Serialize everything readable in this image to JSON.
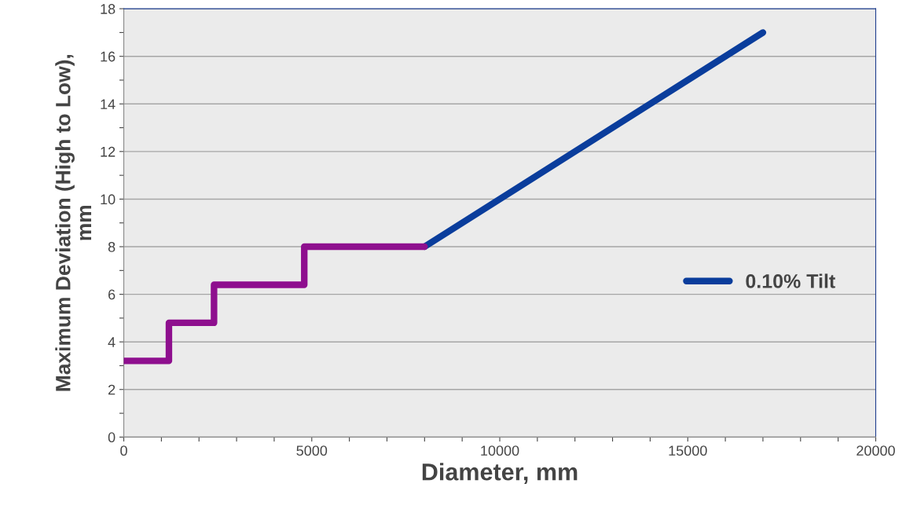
{
  "chart_data": {
    "type": "line",
    "xlabel": "Diameter, mm",
    "ylabel": "Maximum Deviation (High to Low),\nmm",
    "series": [
      {
        "name": "0.10% Tilt",
        "color": "#0a3d9c",
        "x": [
          8000,
          17000
        ],
        "values": [
          8,
          17
        ]
      },
      {
        "type": "step",
        "color": "#8e0f8e",
        "x": [
          0,
          1200,
          2400,
          4800,
          8000
        ],
        "values": [
          3.2,
          4.8,
          6.4,
          8,
          8
        ]
      }
    ],
    "xlim": [
      0,
      20000
    ],
    "ylim": [
      0,
      18
    ],
    "xticks": [
      0,
      {
        "value": 1000,
        "label": null
      },
      {
        "value": 2000,
        "label": null
      },
      {
        "value": 3000,
        "label": null
      },
      {
        "value": 4000,
        "label": null
      },
      5000,
      {
        "value": 6000,
        "label": null
      },
      {
        "value": 7000,
        "label": null
      },
      {
        "value": 8000,
        "label": null
      },
      {
        "value": 9000,
        "label": null
      },
      10000,
      {
        "value": 11000,
        "label": null
      },
      {
        "value": 12000,
        "label": null
      },
      {
        "value": 13000,
        "label": null
      },
      {
        "value": 14000,
        "label": null
      },
      15000,
      {
        "value": 16000,
        "label": null
      },
      {
        "value": 17000,
        "label": null
      },
      {
        "value": 18000,
        "label": null
      },
      {
        "value": 19000,
        "label": null
      },
      20000
    ],
    "yticks": [
      0,
      {
        "value": 1,
        "label": null
      },
      2,
      {
        "value": 3,
        "label": null
      },
      4,
      {
        "value": 5,
        "label": null
      },
      6,
      {
        "value": 7,
        "label": null
      },
      8,
      {
        "value": 9,
        "label": null
      },
      10,
      {
        "value": 11,
        "label": null
      },
      12,
      {
        "value": 13,
        "label": null
      },
      14,
      {
        "value": 15,
        "label": null
      },
      16,
      {
        "value": 17,
        "label": null
      },
      18
    ],
    "grid": "y",
    "legend": "right",
    "marker": "none",
    "line_style": "solid"
  }
}
